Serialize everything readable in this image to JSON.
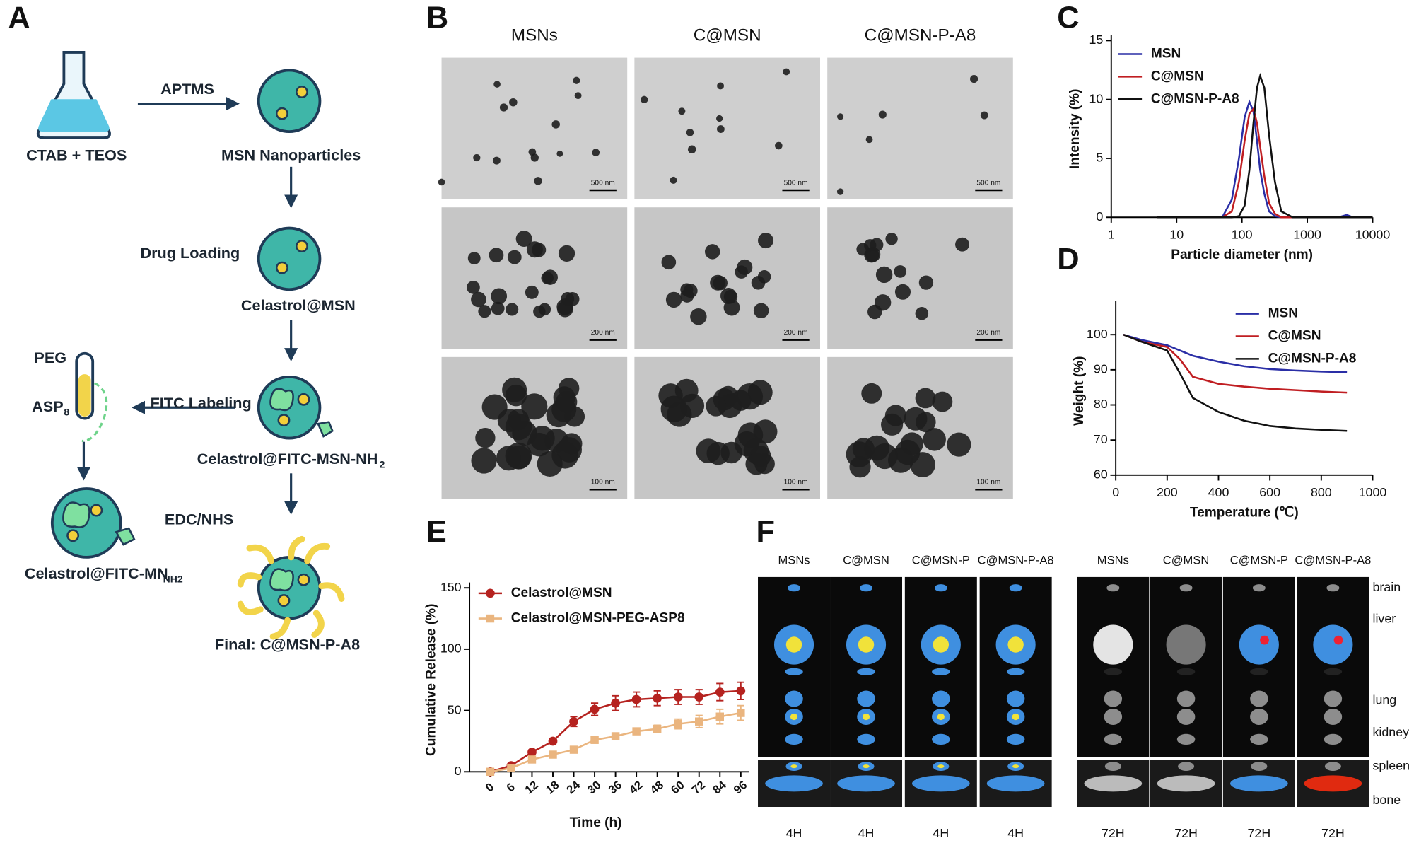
{
  "panels": {
    "A": {
      "letter": "A",
      "labels": {
        "start": "CTAB + TEOS",
        "aptms": "APTMS",
        "msn": "MSN Nanoparticles",
        "drug_loading": "Drug Loading",
        "celastrol_msn": "Celastrol@MSN",
        "fitc_msn": {
          "main": "Celastrol@FITC-MSN-NH",
          "sub": "2"
        },
        "fitc_labeling": "FITC Labeling",
        "peg": "PEG",
        "asp": {
          "main": "ASP",
          "sub": "8"
        },
        "edc_nhs": "EDC/NHS",
        "fitc_mn": {
          "main": "Celastrol@FITC-MN",
          "sub": "NH2"
        },
        "final": "Final: C@MSN-P-A8"
      }
    },
    "B": {
      "letter": "B",
      "columns": [
        "MSNs",
        "C@MSN",
        "C@MSN-P-A8"
      ],
      "scale_bars": [
        [
          "500 nm",
          "500 nm",
          "500 nm"
        ],
        [
          "200 nm",
          "200 nm",
          "200 nm"
        ],
        [
          "100 nm",
          "100 nm",
          "100 nm"
        ]
      ]
    },
    "F_letter_e_placeholder": "E",
    "F": {
      "letter": "F",
      "organs": [
        "brain",
        "liver",
        "lung",
        "kidney",
        "spleen",
        "bone"
      ],
      "groups": [
        {
          "columns": [
            "MSNs",
            "C@MSN",
            "C@MSN-P",
            "C@MSN-P-A8"
          ],
          "times": [
            "4H",
            "4H",
            "4H",
            "4H"
          ]
        },
        {
          "columns": [
            "MSNs",
            "C@MSN",
            "C@MSN-P",
            "C@MSN-P-A8"
          ],
          "times": [
            "72H",
            "72H",
            "72H",
            "72H"
          ]
        }
      ]
    }
  },
  "chart_data": [
    {
      "type": "line",
      "panel": "C",
      "xlabel": "Particle diameter (nm)",
      "ylabel": "Intensity (%)",
      "log_x": true,
      "x": [
        5,
        50,
        70,
        90,
        110,
        130,
        150,
        170,
        190,
        220,
        260,
        320,
        400,
        600,
        1000,
        3000,
        4000,
        5000,
        10000
      ],
      "xlim": [
        1,
        10000
      ],
      "xticks": [
        1,
        10,
        100,
        1000,
        10000
      ],
      "ylim": [
        0,
        15
      ],
      "yticks": [
        0,
        5,
        10,
        15
      ],
      "legend": "upper left",
      "series": [
        {
          "name": "MSN",
          "color": "#2a2ea6",
          "values": [
            0,
            0,
            1.5,
            5,
            8.5,
            9.8,
            9,
            6.5,
            4,
            2,
            0.5,
            0.1,
            0,
            0,
            0,
            0,
            0.2,
            0,
            0
          ]
        },
        {
          "name": "C@MSN",
          "color": "#c01e22",
          "values": [
            0,
            0,
            0.5,
            3,
            6.5,
            8.8,
            9.2,
            8,
            6,
            3.5,
            1.2,
            0.3,
            0,
            0,
            0,
            0,
            0,
            0,
            0
          ]
        },
        {
          "name": "C@MSN-P-A8",
          "color": "#111111",
          "values": [
            0,
            0,
            0,
            0.1,
            1,
            4,
            8,
            11,
            12,
            11,
            7,
            3,
            0.5,
            0,
            0,
            0,
            0,
            0,
            0
          ]
        }
      ]
    },
    {
      "type": "line",
      "panel": "D",
      "xlabel": "Temperature (℃)",
      "ylabel": "Weight (%)",
      "x": [
        30,
        100,
        200,
        250,
        300,
        400,
        500,
        600,
        700,
        800,
        900
      ],
      "xlim": [
        0,
        1000
      ],
      "xticks": [
        0,
        200,
        400,
        600,
        800,
        1000
      ],
      "ylim": [
        60,
        108
      ],
      "yticks": [
        60,
        70,
        80,
        90,
        100
      ],
      "legend": "upper right",
      "series": [
        {
          "name": "MSN",
          "color": "#2a2ea6",
          "values": [
            100,
            98.5,
            97,
            95.5,
            94,
            92.3,
            91,
            90.2,
            89.8,
            89.5,
            89.3
          ]
        },
        {
          "name": "C@MSN",
          "color": "#c01e22",
          "values": [
            100,
            98,
            96.5,
            93,
            88,
            86,
            85.2,
            84.6,
            84.2,
            83.8,
            83.5
          ]
        },
        {
          "name": "C@MSN-P-A8",
          "color": "#111111",
          "values": [
            100,
            98,
            95.5,
            89,
            82,
            78,
            75.5,
            74,
            73.3,
            72.9,
            72.6
          ]
        }
      ]
    },
    {
      "type": "line",
      "panel": "E",
      "xlabel": "Time (h)",
      "ylabel": "Cumulative Release (%)",
      "categories": [
        "0",
        "6",
        "12",
        "18",
        "24",
        "30",
        "36",
        "42",
        "48",
        "60",
        "72",
        "84",
        "96"
      ],
      "ylim": [
        0,
        150
      ],
      "yticks": [
        0,
        50,
        100,
        150
      ],
      "legend": "upper left",
      "series": [
        {
          "name": "Celastrol@MSN",
          "color": "#b5221f",
          "marker": "circle",
          "values": [
            0,
            5,
            16,
            25,
            41,
            51,
            56,
            59,
            60,
            61,
            61,
            65,
            66
          ],
          "errors": [
            1,
            1,
            2,
            2,
            4,
            5,
            6,
            6,
            6,
            6,
            6,
            7,
            7
          ]
        },
        {
          "name": "Celastrol@MSN-PEG-ASP8",
          "color": "#eab57f",
          "marker": "square",
          "values": [
            0,
            3,
            10,
            14,
            18,
            26,
            29,
            33,
            35,
            39,
            41,
            45,
            48
          ],
          "errors": [
            1,
            1,
            2,
            2,
            2,
            2,
            2,
            2,
            3,
            4,
            5,
            6,
            6
          ]
        }
      ]
    }
  ]
}
